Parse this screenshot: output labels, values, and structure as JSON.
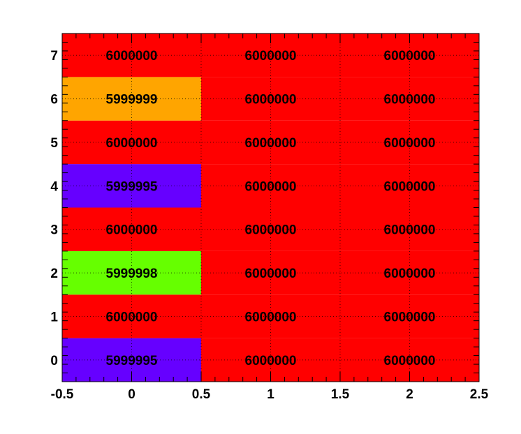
{
  "chart_data": {
    "type": "heatmap",
    "title": "",
    "xlabel": "",
    "ylabel": "",
    "xlim": [
      -0.5,
      2.5
    ],
    "ylim": [
      -0.5,
      7.5
    ],
    "grid": true,
    "x_bins": [
      0,
      1,
      2
    ],
    "y_bins": [
      0,
      1,
      2,
      3,
      4,
      5,
      6,
      7
    ],
    "x_tick_labels": [
      "-0.5",
      "0",
      "0.5",
      "1",
      "1.5",
      "2",
      "2.5"
    ],
    "y_tick_labels": [
      "0",
      "1",
      "2",
      "3",
      "4",
      "5",
      "6",
      "7"
    ],
    "values": [
      [
        5999995,
        6000000,
        6000000
      ],
      [
        6000000,
        6000000,
        6000000
      ],
      [
        5999998,
        6000000,
        6000000
      ],
      [
        6000000,
        6000000,
        6000000
      ],
      [
        5999995,
        6000000,
        6000000
      ],
      [
        6000000,
        6000000,
        6000000
      ],
      [
        5999999,
        6000000,
        6000000
      ],
      [
        6000000,
        6000000,
        6000000
      ]
    ],
    "cell_labels": [
      [
        "5999995",
        "6000000",
        "6000000"
      ],
      [
        "6000000",
        "6000000",
        "6000000"
      ],
      [
        "5999998",
        "6000000",
        "6000000"
      ],
      [
        "6000000",
        "6000000",
        "6000000"
      ],
      [
        "5999995",
        "6000000",
        "6000000"
      ],
      [
        "6000000",
        "6000000",
        "6000000"
      ],
      [
        "5999999",
        "6000000",
        "6000000"
      ],
      [
        "6000000",
        "6000000",
        "6000000"
      ]
    ],
    "colors": {
      "5999995": "#6600ff",
      "5999998": "#66ff00",
      "5999999": "#ffa500",
      "6000000": "#ff0000"
    },
    "frame_color": "#000000",
    "grid_color": "#000000"
  }
}
